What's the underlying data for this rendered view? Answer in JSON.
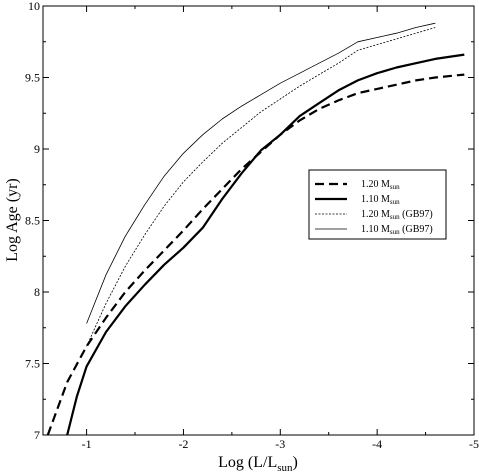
{
  "chart_data": {
    "type": "line",
    "title": "",
    "xlabel": {
      "main": "Log (L/L",
      "sub": "sun",
      "close": ")"
    },
    "ylabel": "Log Age (yr)",
    "xlim": [
      -0.55,
      -5
    ],
    "ylim": [
      7,
      10
    ],
    "x_reversed": true,
    "grid": false,
    "xticks": [
      {
        "value": -1,
        "label": "-1"
      },
      {
        "value": -2,
        "label": "-2"
      },
      {
        "value": -3,
        "label": "-3"
      },
      {
        "value": -4,
        "label": "-4"
      },
      {
        "value": -5,
        "label": "-5"
      }
    ],
    "yticks": [
      {
        "value": 7,
        "label": "7"
      },
      {
        "value": 7.5,
        "label": "7.5"
      },
      {
        "value": 8,
        "label": "8"
      },
      {
        "value": 8.5,
        "label": "8.5"
      },
      {
        "value": 9,
        "label": "9"
      },
      {
        "value": 9.5,
        "label": "9.5"
      },
      {
        "value": 10,
        "label": "10"
      }
    ],
    "legend_position": "right-center",
    "series": [
      {
        "name": "1.20 M",
        "name_sub": "sun",
        "name_suffix": "",
        "style": "thick-dashed",
        "x": [
          -0.6,
          -0.8,
          -1.0,
          -1.2,
          -1.4,
          -1.6,
          -1.8,
          -2.0,
          -2.2,
          -2.4,
          -2.6,
          -2.8,
          -3.0,
          -3.2,
          -3.4,
          -3.6,
          -3.8,
          -4.0,
          -4.2,
          -4.4,
          -4.6,
          -4.9
        ],
        "y": [
          7.0,
          7.37,
          7.62,
          7.82,
          8.0,
          8.15,
          8.29,
          8.43,
          8.58,
          8.72,
          8.86,
          8.98,
          9.1,
          9.2,
          9.28,
          9.34,
          9.39,
          9.42,
          9.45,
          9.48,
          9.5,
          9.52
        ]
      },
      {
        "name": "1.10 M",
        "name_sub": "sun",
        "name_suffix": "",
        "style": "thick-solid",
        "x": [
          -0.8,
          -0.9,
          -1.0,
          -1.2,
          -1.4,
          -1.6,
          -1.8,
          -2.0,
          -2.2,
          -2.4,
          -2.6,
          -2.8,
          -3.0,
          -3.2,
          -3.4,
          -3.6,
          -3.8,
          -4.0,
          -4.2,
          -4.4,
          -4.6,
          -4.9
        ],
        "y": [
          7.0,
          7.27,
          7.48,
          7.72,
          7.9,
          8.05,
          8.19,
          8.31,
          8.45,
          8.65,
          8.83,
          8.99,
          9.1,
          9.23,
          9.32,
          9.41,
          9.48,
          9.53,
          9.57,
          9.6,
          9.63,
          9.66
        ]
      },
      {
        "name": "1.20 M",
        "name_sub": "sun",
        "name_suffix": " (GB97)",
        "style": "thin-dotted",
        "x": [
          -1.0,
          -1.2,
          -1.4,
          -1.6,
          -1.8,
          -2.0,
          -2.2,
          -2.4,
          -2.6,
          -2.8,
          -3.0,
          -3.2,
          -3.4,
          -3.6,
          -3.8,
          -4.0,
          -4.2,
          -4.4,
          -4.6
        ],
        "y": [
          7.62,
          7.92,
          8.18,
          8.4,
          8.6,
          8.77,
          8.91,
          9.04,
          9.15,
          9.26,
          9.35,
          9.44,
          9.52,
          9.6,
          9.69,
          9.73,
          9.77,
          9.81,
          9.85
        ]
      },
      {
        "name": "1.10 M",
        "name_sub": "sun",
        "name_suffix": " (GB97)",
        "style": "thin-solid",
        "x": [
          -1.0,
          -1.2,
          -1.4,
          -1.6,
          -1.8,
          -2.0,
          -2.2,
          -2.4,
          -2.6,
          -2.8,
          -3.0,
          -3.2,
          -3.4,
          -3.6,
          -3.8,
          -4.0,
          -4.2,
          -4.4,
          -4.6
        ],
        "y": [
          7.78,
          8.12,
          8.39,
          8.61,
          8.81,
          8.97,
          9.1,
          9.21,
          9.3,
          9.38,
          9.46,
          9.53,
          9.6,
          9.67,
          9.75,
          9.78,
          9.81,
          9.85,
          9.88
        ]
      }
    ]
  }
}
